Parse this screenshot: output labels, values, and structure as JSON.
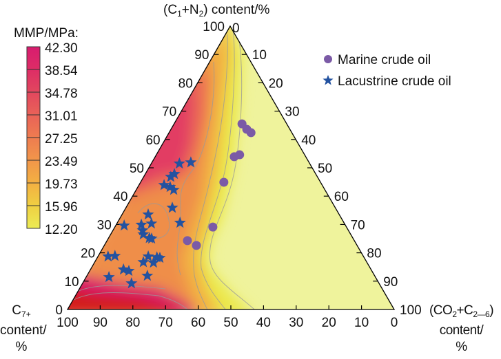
{
  "chart_data": {
    "type": "scatter",
    "subtype": "ternary-contour",
    "title_top": {
      "p1": "(C",
      "s1": "1",
      "p2": "+N",
      "s2": "2",
      "p3": ") content/%"
    },
    "axis_left": {
      "p1": "C",
      "s1": "7+",
      "line2": "content/",
      "line3": "%"
    },
    "axis_right": {
      "p1": "(CO",
      "s1": "2",
      "p2": "+C",
      "s2": "2—6",
      "p3": ")",
      "line2": "content/",
      "line3": "%"
    },
    "ternary_components": [
      "C1+N2",
      "C7+",
      "CO2+C2-6"
    ],
    "ticks": [
      0,
      10,
      20,
      30,
      40,
      50,
      60,
      70,
      80,
      90,
      100
    ],
    "tick_labels": [
      "0",
      "10",
      "20",
      "30",
      "40",
      "50",
      "60",
      "70",
      "80",
      "90",
      "100"
    ],
    "colorbar": {
      "title": "MMP/MPa:",
      "labels": [
        "42.30",
        "38.54",
        "34.78",
        "31.01",
        "27.25",
        "23.49",
        "19.73",
        "15.96",
        "12.20"
      ],
      "colors": [
        "#d81c6f",
        "#dd2d66",
        "#e2475e",
        "#e96258",
        "#ee7c50",
        "#f2964a",
        "#f3b042",
        "#efcf42",
        "#ecec55"
      ]
    },
    "legend": {
      "position": "top-right",
      "items": [
        {
          "label": "Marine crude oil",
          "marker": "circle",
          "color": "#7b5aa6"
        },
        {
          "label": "Lacustrine crude oil",
          "marker": "star",
          "color": "#2352a0"
        }
      ]
    },
    "series_note": "points given as [C1+N2 %, CO2+C2-6 %]; C7+ = 100 - sum",
    "series": [
      {
        "name": "Marine crude oil",
        "points": [
          [
            65.5,
            20.8
          ],
          [
            63.6,
            23.2
          ],
          [
            62.4,
            25.1
          ],
          [
            54.6,
            25.5
          ],
          [
            53.9,
            24.2
          ],
          [
            44.9,
            25.5
          ],
          [
            29.1,
            30.0
          ],
          [
            24.3,
            24.6
          ],
          [
            22.6,
            28.2
          ]
        ]
      },
      {
        "name": "Lacustrine crude oil",
        "points": [
          [
            51.5,
            8.6
          ],
          [
            51.9,
            11.9
          ],
          [
            47.8,
            8.9
          ],
          [
            46.8,
            8.3
          ],
          [
            43.9,
            7.7
          ],
          [
            43.2,
            9.9
          ],
          [
            42.2,
            11.5
          ],
          [
            35.9,
            14.2
          ],
          [
            33.5,
            8.0
          ],
          [
            29.9,
            7.7
          ],
          [
            30.3,
            10.6
          ],
          [
            29.6,
            2.6
          ],
          [
            30.6,
            19.2
          ],
          [
            27.9,
            9.1
          ],
          [
            26.5,
            10.0
          ],
          [
            25.2,
            12.5
          ],
          [
            25.0,
            13.3
          ],
          [
            18.7,
            3.1
          ],
          [
            18.9,
            5.1
          ],
          [
            18.7,
            15.4
          ],
          [
            16.7,
            14.9
          ],
          [
            16.5,
            18.1
          ],
          [
            18.4,
            18.2
          ],
          [
            18.2,
            19.2
          ],
          [
            14.1,
            10.1
          ],
          [
            13.6,
            12.0
          ],
          [
            11.4,
            7.0
          ],
          [
            11.9,
            18.5
          ],
          [
            9.2,
            15.0
          ]
        ]
      }
    ]
  }
}
